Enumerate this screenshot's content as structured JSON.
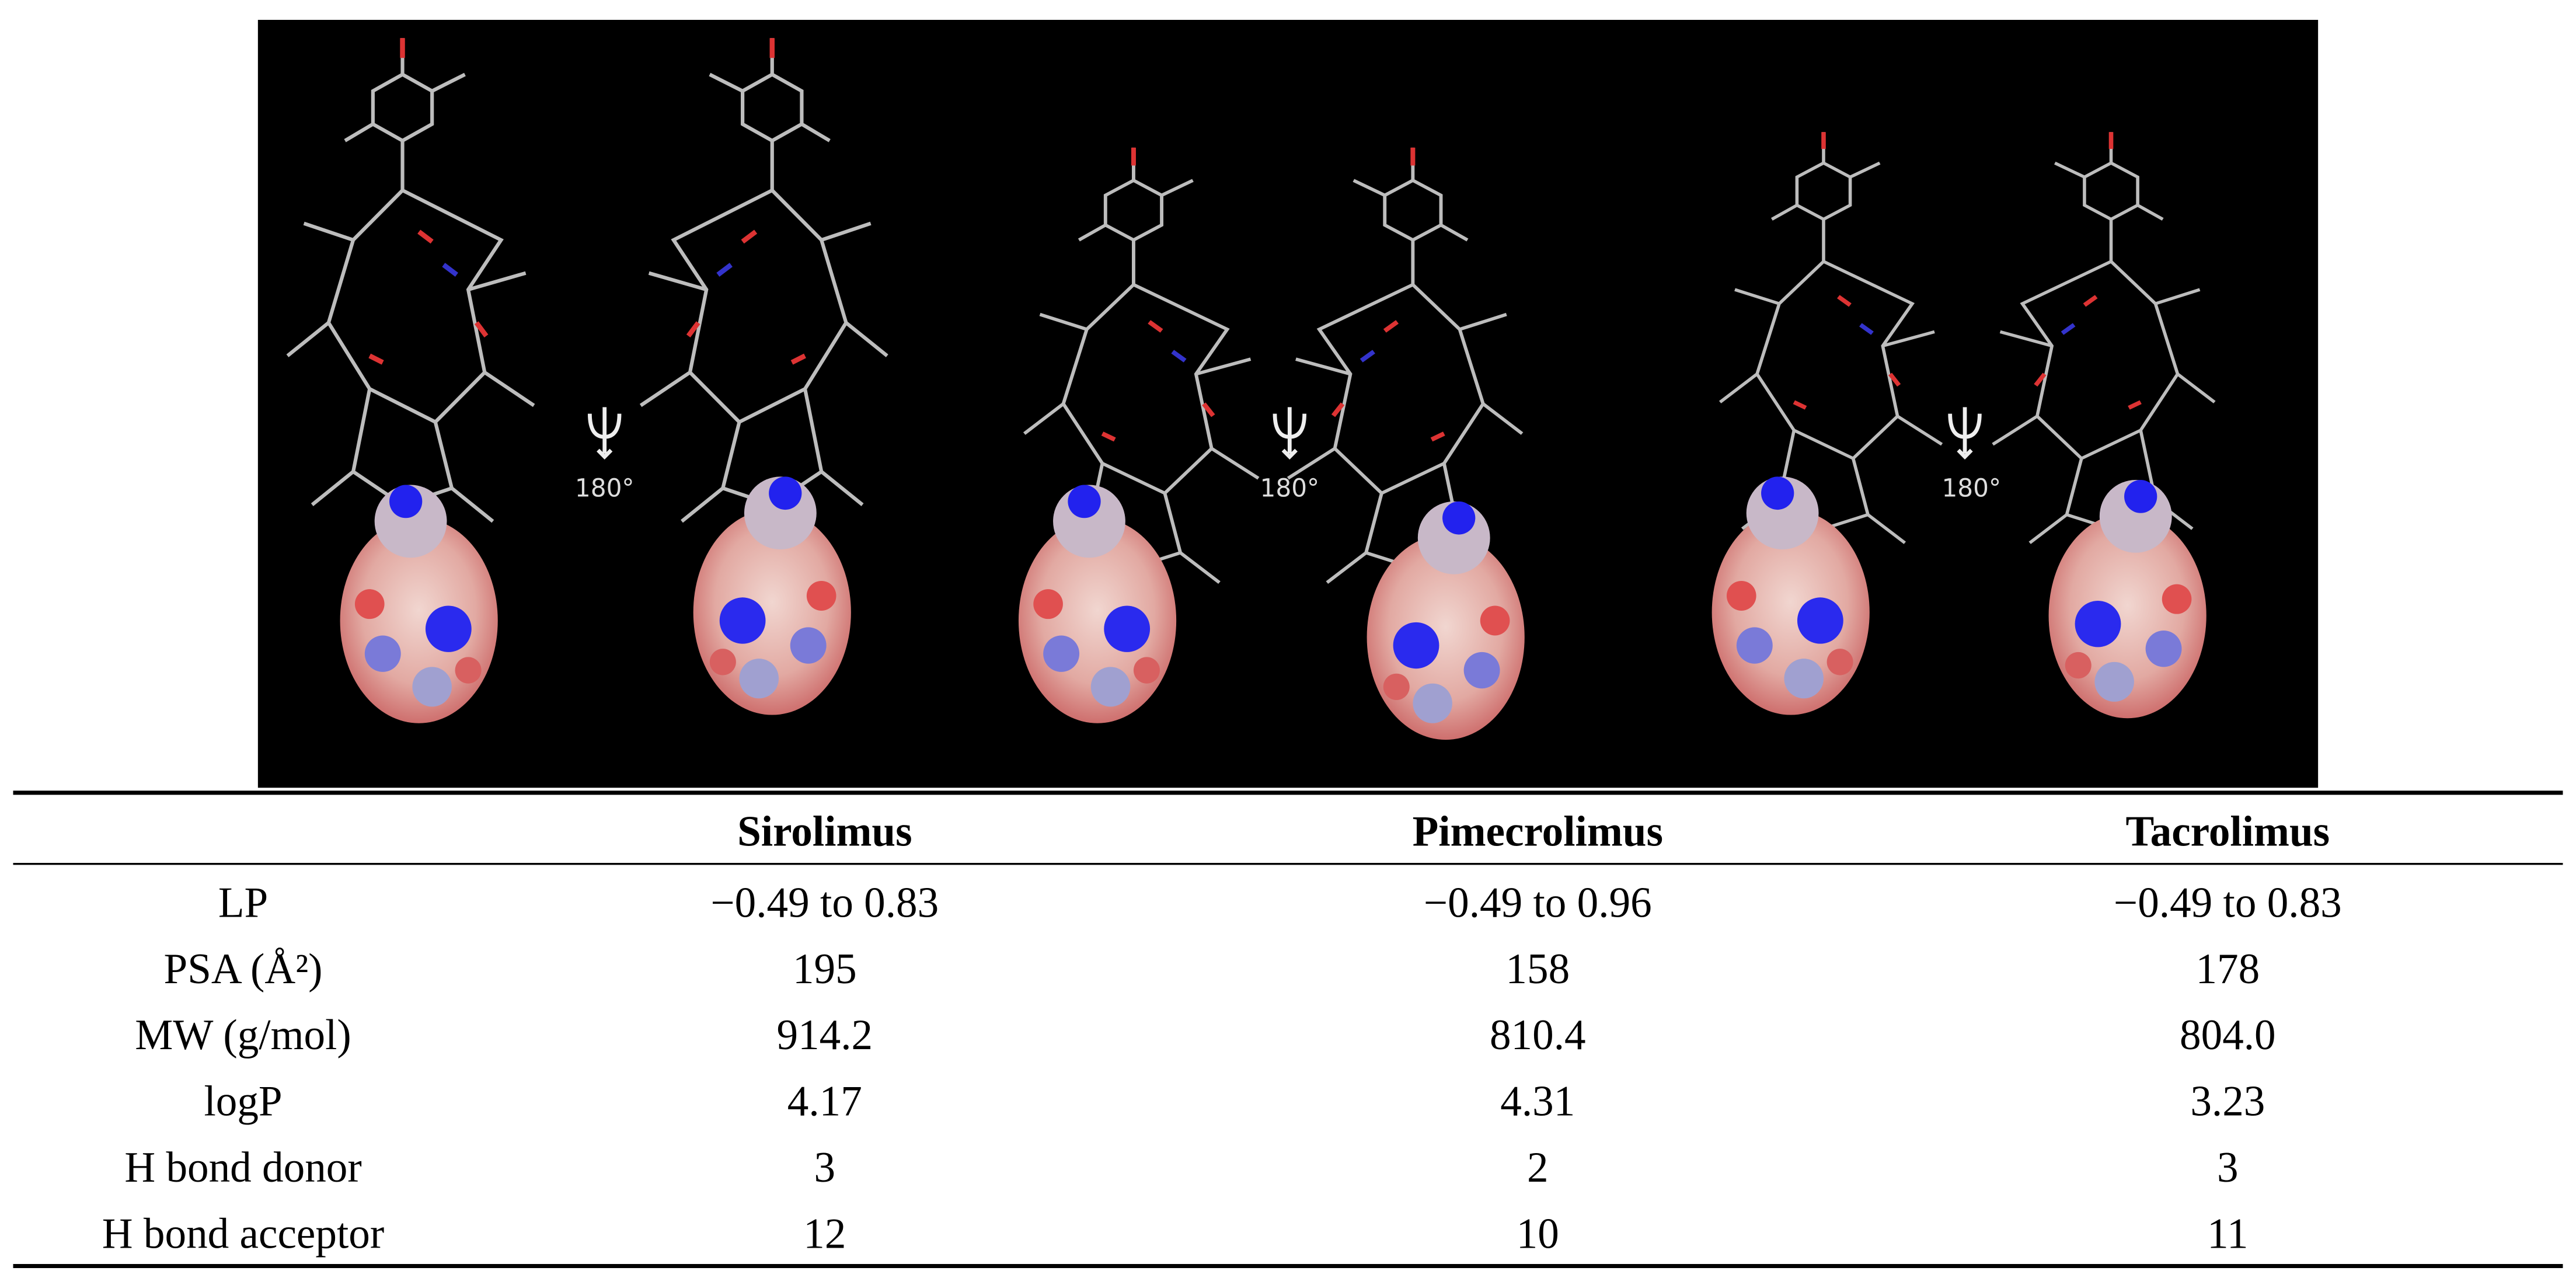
{
  "figure": {
    "rotation_labels": [
      "180°",
      "180°",
      "180°"
    ]
  },
  "table": {
    "header": [
      "Sirolimus",
      "Pimecrolimus",
      "Tacrolimus"
    ],
    "rows": [
      [
        "LP",
        "−0.49 to 0.83",
        "−0.49 to 0.96",
        "−0.49 to 0.83"
      ],
      [
        "PSA (Å²)",
        "195",
        "158",
        "178"
      ],
      [
        "MW (g/mol)",
        "914.2",
        "810.4",
        "804.0"
      ],
      [
        "logP",
        "4.17",
        "4.31",
        "3.23"
      ],
      [
        "H bond donor",
        "3",
        "2",
        "3"
      ],
      [
        "H bond acceptor",
        "12",
        "10",
        "11"
      ]
    ]
  }
}
